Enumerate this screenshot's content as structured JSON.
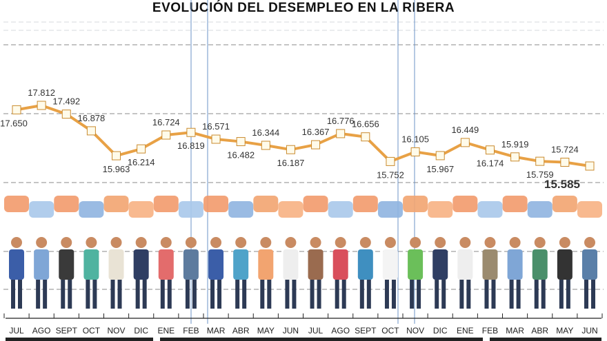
{
  "chart_data": {
    "type": "line",
    "title": "EVOLUCIÓN DEL DESEMPLEO EN LA RIBERA",
    "categories": [
      "JUL",
      "AGO",
      "SEPT",
      "OCT",
      "NOV",
      "DIC",
      "ENE",
      "FEB",
      "MAR",
      "ABR",
      "MAY",
      "JUN",
      "JUL",
      "AGO",
      "SEPT",
      "OCT",
      "NOV",
      "DIC",
      "ENE",
      "FEB",
      "MAR",
      "ABR",
      "MAY",
      "JUN"
    ],
    "values": [
      17650,
      17812,
      17492,
      16878,
      15963,
      16214,
      16724,
      16819,
      16571,
      16482,
      16344,
      16187,
      16367,
      16776,
      16656,
      15752,
      16105,
      15967,
      16449,
      16174,
      15919,
      15759,
      15724,
      15585
    ],
    "labels": [
      "17.650",
      "17.812",
      "17.492",
      "16.878",
      "15.963",
      "16.214",
      "16.724",
      "16.819",
      "16.571",
      "16.482",
      "16.344",
      "16.187",
      "16.367",
      "16.776",
      "16.656",
      "15.752",
      "16.105",
      "15.967",
      "16.449",
      "16.174",
      "15.919",
      "15.759",
      "15.724",
      "15.585"
    ],
    "label_positions": [
      "below",
      "above",
      "above",
      "above",
      "below",
      "below",
      "above",
      "below",
      "above",
      "below",
      "above",
      "below",
      "above",
      "above",
      "above",
      "below",
      "above",
      "below",
      "above",
      "below",
      "above",
      "below",
      "above",
      "below"
    ],
    "highlight_last": true,
    "line_color": "#e8a145",
    "marker": "square",
    "grid": "dashed horizontal",
    "xlabel": "",
    "ylabel": ""
  }
}
